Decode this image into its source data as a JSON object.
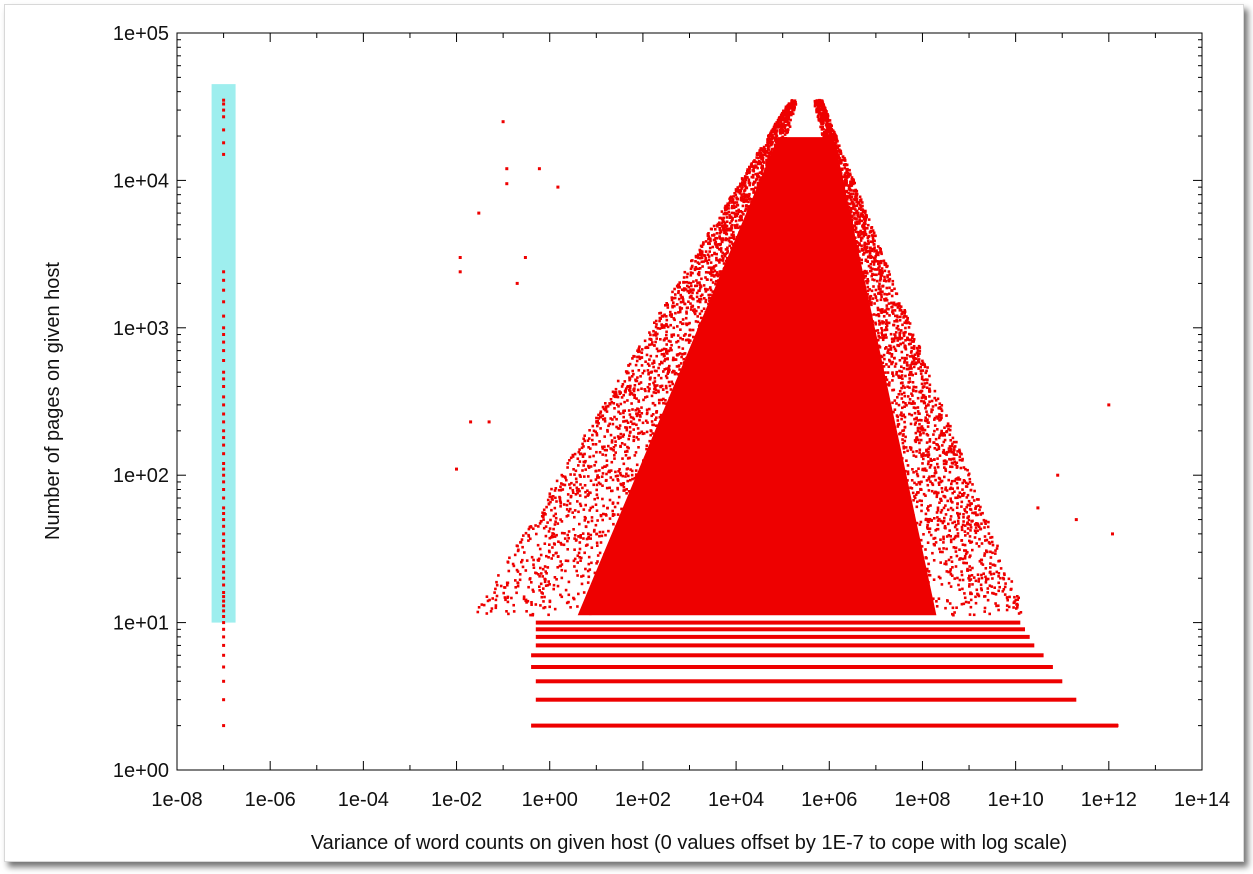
{
  "chart_data": {
    "type": "scatter",
    "title": "",
    "xlabel": "Variance of word counts on given host (0 values offset by 1E-7 to cope with log scale)",
    "ylabel": "Number of pages on given host",
    "xscale": "log",
    "yscale": "log",
    "xlim": [
      1e-08,
      100000000000000.0
    ],
    "ylim": [
      1,
      100000
    ],
    "grid": false,
    "x_tick_labels": [
      "1e-08",
      "1e-06",
      "1e-04",
      "1e-02",
      "1e+00",
      "1e+02",
      "1e+04",
      "1e+06",
      "1e+08",
      "1e+10",
      "1e+12",
      "1e+14"
    ],
    "y_tick_labels": [
      "1e+00",
      "1e+01",
      "1e+02",
      "1e+03",
      "1e+04",
      "1e+05"
    ],
    "marker_color": "#ee0000",
    "highlight": {
      "color": "#9eeeee",
      "x": 1e-07,
      "y_range": [
        10,
        45000
      ]
    },
    "zero_variance_column": {
      "x": 1e-07,
      "y_values": [
        2,
        3,
        4,
        5,
        6,
        7,
        8,
        9,
        10,
        11,
        12,
        13,
        14,
        15,
        16,
        18,
        20,
        22,
        24,
        27,
        30,
        33,
        36,
        40,
        45,
        50,
        55,
        60,
        70,
        80,
        90,
        100,
        110,
        120,
        140,
        160,
        180,
        200,
        230,
        260,
        300,
        340,
        400,
        450,
        500,
        600,
        700,
        800,
        900,
        1000,
        1200,
        1500,
        1800,
        2100,
        2400,
        15000,
        18000,
        22000,
        27000,
        30000,
        33000,
        35000
      ]
    },
    "bulk_distribution": {
      "description_units": "log10(variance) vs pages",
      "left_edge_log10_x_at_y10": -0.4,
      "right_edge_log10_x_at_y10": 9.3,
      "apex_log10_x": 5.5,
      "apex_y": 35000,
      "integer_bands_y": [
        2,
        3,
        4,
        5,
        6,
        7,
        8,
        9,
        10
      ],
      "band_log10_x_ranges": [
        [
          -0.4,
          12.2
        ],
        [
          -0.3,
          11.3
        ],
        [
          -0.3,
          11.0
        ],
        [
          -0.4,
          10.8
        ],
        [
          -0.4,
          10.6
        ],
        [
          -0.3,
          10.4
        ],
        [
          -0.3,
          10.3
        ],
        [
          -0.3,
          10.2
        ],
        [
          -0.3,
          10.1
        ]
      ]
    },
    "outliers": [
      {
        "x": 0.01,
        "y": 110
      },
      {
        "x": 0.012,
        "y": 3000
      },
      {
        "x": 0.012,
        "y": 2400
      },
      {
        "x": 0.02,
        "y": 230
      },
      {
        "x": 0.03,
        "y": 6000
      },
      {
        "x": 0.05,
        "y": 230
      },
      {
        "x": 0.1,
        "y": 25000
      },
      {
        "x": 0.12,
        "y": 12000
      },
      {
        "x": 0.12,
        "y": 9500
      },
      {
        "x": 0.2,
        "y": 2000
      },
      {
        "x": 0.3,
        "y": 3000
      },
      {
        "x": 0.6,
        "y": 12000
      },
      {
        "x": 1.5,
        "y": 9000
      },
      {
        "x": 30000000000.0,
        "y": 60
      },
      {
        "x": 80000000000.0,
        "y": 100
      },
      {
        "x": 200000000000.0,
        "y": 50
      },
      {
        "x": 1000000000000.0,
        "y": 300
      },
      {
        "x": 1200000000000.0,
        "y": 40
      },
      {
        "x": 1500000000000.0,
        "y": 2
      }
    ]
  }
}
